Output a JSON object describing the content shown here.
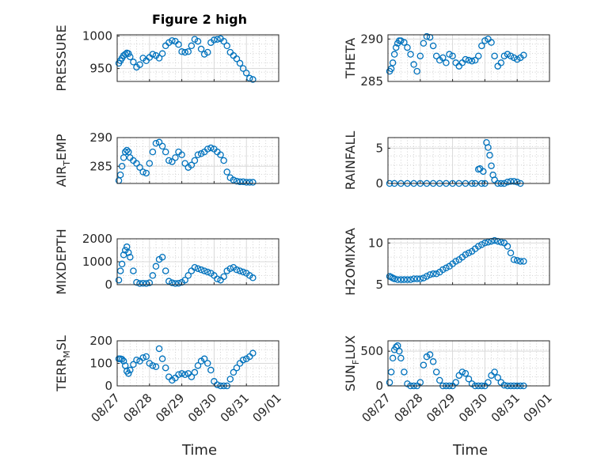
{
  "figure_title": "Figure 2 high",
  "chart_data": [
    {
      "type": "scatter",
      "title": "Figure 2 high",
      "ylabel": "PRESSURE",
      "xlabel": "",
      "xlim": [
        "08/27",
        "09/01"
      ],
      "ylim": [
        930,
        1002
      ],
      "yticks": [
        950,
        1000
      ],
      "x_days": [
        0.05,
        0.1,
        0.15,
        0.2,
        0.25,
        0.3,
        0.35,
        0.4,
        0.5,
        0.6,
        0.7,
        0.8,
        0.9,
        1.0,
        1.1,
        1.2,
        1.3,
        1.4,
        1.5,
        1.6,
        1.7,
        1.8,
        1.9,
        2.0,
        2.1,
        2.2,
        2.3,
        2.4,
        2.5,
        2.6,
        2.7,
        2.8,
        2.9,
        3.0,
        3.1,
        3.2,
        3.3,
        3.4,
        3.5,
        3.6,
        3.7,
        3.8,
        3.9,
        4.0,
        4.1,
        4.2
      ],
      "y": [
        958,
        962,
        966,
        970,
        972,
        974,
        973,
        968,
        960,
        952,
        956,
        966,
        962,
        967,
        972,
        970,
        966,
        973,
        985,
        990,
        993,
        992,
        987,
        976,
        975,
        976,
        985,
        995,
        992,
        980,
        972,
        975,
        990,
        994,
        995,
        996,
        992,
        985,
        975,
        970,
        965,
        958,
        950,
        943,
        935,
        933
      ]
    },
    {
      "type": "scatter",
      "ylabel": "THETA",
      "xlim": [
        "08/27",
        "09/01"
      ],
      "ylim": [
        285,
        290.5
      ],
      "yticks": [
        285,
        290
      ],
      "x_days": [
        0.05,
        0.1,
        0.15,
        0.2,
        0.25,
        0.3,
        0.35,
        0.4,
        0.5,
        0.6,
        0.7,
        0.8,
        0.9,
        1.0,
        1.1,
        1.2,
        1.3,
        1.4,
        1.5,
        1.6,
        1.7,
        1.8,
        1.9,
        2.0,
        2.1,
        2.2,
        2.3,
        2.4,
        2.5,
        2.6,
        2.7,
        2.8,
        2.9,
        3.0,
        3.1,
        3.2,
        3.3,
        3.4,
        3.5,
        3.6,
        3.7,
        3.8,
        3.9,
        4.0,
        4.1,
        4.2
      ],
      "y": [
        286.2,
        286.5,
        287.2,
        288.2,
        289,
        289.5,
        289.8,
        289.8,
        289.6,
        289,
        288.2,
        287,
        286.2,
        288,
        289.5,
        290.3,
        290.2,
        289.2,
        288,
        287.5,
        287.8,
        287.2,
        288.2,
        288,
        287.2,
        286.8,
        287.2,
        287.6,
        287.5,
        287.4,
        287.5,
        288,
        289.2,
        289.8,
        290,
        289.6,
        288,
        286.8,
        287.2,
        288,
        288.2,
        288,
        287.8,
        287.6,
        287.8,
        288.1
      ]
    },
    {
      "type": "scatter",
      "ylabel": "AIR_TEMP",
      "xlim": [
        "08/27",
        "09/01"
      ],
      "ylim": [
        282,
        290
      ],
      "yticks": [
        285,
        290
      ],
      "x_days": [
        0.05,
        0.1,
        0.15,
        0.2,
        0.25,
        0.3,
        0.35,
        0.4,
        0.5,
        0.6,
        0.7,
        0.8,
        0.9,
        1.0,
        1.1,
        1.2,
        1.3,
        1.4,
        1.5,
        1.6,
        1.7,
        1.8,
        1.9,
        2.0,
        2.1,
        2.2,
        2.3,
        2.4,
        2.5,
        2.6,
        2.7,
        2.8,
        2.9,
        3.0,
        3.1,
        3.2,
        3.3,
        3.4,
        3.5,
        3.6,
        3.7,
        3.8,
        3.9,
        4.0,
        4.1,
        4.2
      ],
      "y": [
        282.5,
        283.5,
        285,
        286.5,
        287.5,
        287.8,
        287.5,
        286.5,
        286,
        285.5,
        284.8,
        284,
        283.8,
        285.5,
        287.5,
        289,
        289.2,
        288.5,
        287.5,
        286,
        285.8,
        286.5,
        287.5,
        287,
        285.5,
        284.8,
        285.2,
        286,
        287,
        287.2,
        287.5,
        288,
        288.2,
        288,
        287.5,
        287,
        286,
        284,
        283,
        282.6,
        282.4,
        282.3,
        282.3,
        282.2,
        282.2,
        282.2
      ]
    },
    {
      "type": "scatter",
      "ylabel": "RAINFALL",
      "xlim": [
        "08/27",
        "09/01"
      ],
      "ylim": [
        0,
        6.5
      ],
      "yticks": [
        0,
        5
      ],
      "x_days": [
        0.05,
        0.2,
        0.4,
        0.6,
        0.8,
        1.0,
        1.2,
        1.4,
        1.6,
        1.8,
        2.0,
        2.2,
        2.4,
        2.6,
        2.7,
        2.8,
        2.85,
        2.9,
        2.95,
        3.0,
        3.05,
        3.1,
        3.15,
        3.2,
        3.25,
        3.3,
        3.4,
        3.5,
        3.6,
        3.7,
        3.8,
        3.9,
        4.0,
        4.1
      ],
      "y": [
        0,
        0,
        0,
        0,
        0,
        0,
        0,
        0,
        0,
        0,
        0,
        0,
        0,
        0,
        0,
        2.0,
        2.1,
        0,
        1.7,
        0,
        5.8,
        5.1,
        4.0,
        2.5,
        1.2,
        0.5,
        0,
        0,
        0,
        0.2,
        0.3,
        0.3,
        0.2,
        0
      ]
    },
    {
      "type": "scatter",
      "ylabel": "MIXDEPTH",
      "xlim": [
        "08/27",
        "09/01"
      ],
      "ylim": [
        0,
        2000
      ],
      "yticks": [
        0,
        1000,
        2000
      ],
      "x_days": [
        0.05,
        0.1,
        0.15,
        0.2,
        0.25,
        0.3,
        0.35,
        0.4,
        0.5,
        0.6,
        0.7,
        0.8,
        0.9,
        1.0,
        1.1,
        1.2,
        1.3,
        1.4,
        1.5,
        1.6,
        1.7,
        1.8,
        1.9,
        2.0,
        2.1,
        2.2,
        2.3,
        2.4,
        2.5,
        2.6,
        2.7,
        2.8,
        2.9,
        3.0,
        3.1,
        3.2,
        3.3,
        3.4,
        3.5,
        3.6,
        3.7,
        3.8,
        3.9,
        4.0,
        4.1,
        4.2
      ],
      "y": [
        200,
        600,
        900,
        1300,
        1500,
        1650,
        1400,
        1200,
        600,
        100,
        50,
        60,
        50,
        80,
        400,
        800,
        1100,
        1200,
        600,
        150,
        80,
        50,
        60,
        100,
        200,
        400,
        600,
        750,
        700,
        650,
        600,
        550,
        500,
        400,
        250,
        200,
        350,
        600,
        700,
        750,
        650,
        600,
        550,
        500,
        400,
        300
      ]
    },
    {
      "type": "scatter",
      "ylabel": "H2OMIXRA",
      "xlim": [
        "08/27",
        "09/01"
      ],
      "ylim": [
        5,
        10.5
      ],
      "yticks": [
        5,
        10
      ],
      "x_days": [
        0.05,
        0.1,
        0.15,
        0.2,
        0.3,
        0.4,
        0.5,
        0.6,
        0.7,
        0.8,
        0.9,
        1.0,
        1.1,
        1.2,
        1.3,
        1.4,
        1.5,
        1.6,
        1.7,
        1.8,
        1.9,
        2.0,
        2.1,
        2.2,
        2.3,
        2.4,
        2.5,
        2.6,
        2.7,
        2.8,
        2.9,
        3.0,
        3.1,
        3.2,
        3.3,
        3.4,
        3.5,
        3.6,
        3.7,
        3.8,
        3.9,
        4.0,
        4.1,
        4.2
      ],
      "y": [
        6.0,
        5.9,
        5.8,
        5.7,
        5.6,
        5.6,
        5.6,
        5.6,
        5.6,
        5.7,
        5.7,
        5.7,
        5.8,
        6.0,
        6.2,
        6.3,
        6.3,
        6.5,
        6.8,
        7.0,
        7.2,
        7.5,
        7.8,
        8.0,
        8.3,
        8.6,
        8.8,
        9.0,
        9.3,
        9.6,
        9.8,
        10.0,
        10.1,
        10.2,
        10.3,
        10.2,
        10.1,
        10.0,
        9.6,
        8.8,
        8.0,
        7.9,
        7.8,
        7.8
      ]
    },
    {
      "type": "scatter",
      "ylabel": "TERR_MSL",
      "xlim": [
        "08/27",
        "09/01"
      ],
      "ylim": [
        0,
        200
      ],
      "yticks": [
        0,
        100,
        200
      ],
      "x_days": [
        0.05,
        0.1,
        0.15,
        0.2,
        0.25,
        0.3,
        0.35,
        0.4,
        0.5,
        0.6,
        0.7,
        0.8,
        0.9,
        1.0,
        1.1,
        1.2,
        1.3,
        1.4,
        1.5,
        1.6,
        1.7,
        1.8,
        1.9,
        2.0,
        2.1,
        2.2,
        2.3,
        2.4,
        2.5,
        2.6,
        2.7,
        2.8,
        2.9,
        3.0,
        3.1,
        3.2,
        3.3,
        3.4,
        3.5,
        3.6,
        3.7,
        3.8,
        3.9,
        4.0,
        4.1,
        4.2
      ],
      "y": [
        120,
        120,
        118,
        110,
        90,
        65,
        55,
        70,
        95,
        115,
        110,
        125,
        130,
        100,
        90,
        85,
        165,
        120,
        80,
        40,
        25,
        35,
        50,
        55,
        50,
        55,
        40,
        60,
        90,
        110,
        120,
        100,
        70,
        20,
        5,
        0,
        0,
        0,
        30,
        60,
        80,
        100,
        115,
        120,
        130,
        145
      ]
    },
    {
      "type": "scatter",
      "ylabel": "SUN_FLUX",
      "xlim": [
        "08/27",
        "09/01"
      ],
      "ylim": [
        0,
        650
      ],
      "yticks": [
        0,
        500
      ],
      "x_days": [
        0.05,
        0.1,
        0.15,
        0.2,
        0.25,
        0.3,
        0.35,
        0.4,
        0.5,
        0.6,
        0.7,
        0.8,
        0.9,
        1.0,
        1.1,
        1.2,
        1.3,
        1.4,
        1.5,
        1.6,
        1.7,
        1.8,
        1.9,
        2.0,
        2.1,
        2.2,
        2.3,
        2.4,
        2.5,
        2.6,
        2.7,
        2.8,
        2.9,
        3.0,
        3.1,
        3.2,
        3.3,
        3.4,
        3.5,
        3.6,
        3.7,
        3.8,
        3.9,
        4.0,
        4.1,
        4.2
      ],
      "y": [
        50,
        200,
        400,
        520,
        560,
        580,
        500,
        400,
        200,
        30,
        0,
        0,
        0,
        50,
        300,
        420,
        450,
        350,
        200,
        80,
        0,
        0,
        0,
        0,
        50,
        150,
        200,
        180,
        100,
        30,
        0,
        0,
        0,
        0,
        50,
        150,
        200,
        120,
        50,
        10,
        0,
        0,
        0,
        0,
        0,
        0
      ]
    }
  ],
  "x_ticks": [
    "08/27",
    "08/28",
    "08/29",
    "08/30",
    "08/31",
    "09/01"
  ],
  "xlabel": "Time",
  "marker_color": "#0072BD"
}
